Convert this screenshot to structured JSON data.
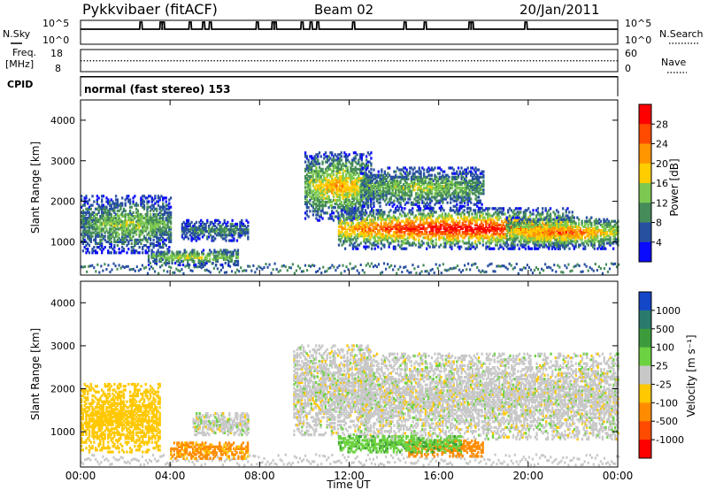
{
  "header": {
    "station": "Pykkvibaer (fitACF)",
    "beam": "Beam 02",
    "date": "20/Jan/2011"
  },
  "mode_line": "normal (fast stereo) 153",
  "axes": {
    "x_label": "Time UT",
    "x_ticks": [
      "00:00",
      "04:00",
      "08:00",
      "12:00",
      "16:00",
      "20:00",
      "00:00"
    ],
    "y_label": "Slant Range [km]",
    "y_ticks": [
      "1000",
      "2000",
      "3000",
      "4000"
    ]
  },
  "top_panel": {
    "left_label": "N.Sky",
    "right_label": "N.Search",
    "left_ticks": [
      "10^5",
      "10^0"
    ],
    "right_ticks": [
      "10^5",
      "10^0"
    ]
  },
  "freq_panel": {
    "left_label": "Freq.",
    "left_unit": "[MHz]",
    "right_label": "Nave",
    "left_ticks": [
      "18",
      "8"
    ],
    "right_ticks": [
      "60",
      "0"
    ]
  },
  "cpid_label": "CPID",
  "power_colorbar": {
    "label": "Power [dB]",
    "ticks": [
      "28",
      "24",
      "20",
      "16",
      "12",
      "8",
      "4"
    ],
    "colors": [
      "#ff0000",
      "#ff4b00",
      "#ff9600",
      "#ffcd00",
      "#7dc850",
      "#468c5a",
      "#2850a0",
      "#0a0aff"
    ]
  },
  "velocity_colorbar": {
    "label": "Velocity [m s⁻¹]",
    "ticks": [
      "1000",
      "500",
      "100",
      "25",
      "-25",
      "-100",
      "-500",
      "-1000"
    ],
    "colors": [
      "#1446c8",
      "#2a7b6e",
      "#3c9c3c",
      "#6cd241",
      "#c8c8c8",
      "#ffc800",
      "#ff8c00",
      "#ff4b00",
      "#ff0000"
    ]
  },
  "chart_data": [
    {
      "type": "line",
      "title": "N.Sky / N.Search",
      "x_range_hours": [
        0,
        24
      ],
      "baseline_level": "10^0 (flat near bottom of 10^5 scale)",
      "spike_hours": [
        2.7,
        3.6,
        3.7,
        4.9,
        5.5,
        5.8,
        7.9,
        8.6,
        8.7,
        9.9,
        10.3,
        10.6,
        12.2,
        14.5,
        15.4,
        17.4,
        17.5,
        19.9
      ]
    },
    {
      "type": "line",
      "title": "Freq. / Nave",
      "freq_mhz": 10.5,
      "nave_dotted": 15,
      "freq_range": [
        8,
        18
      ],
      "nave_range": [
        0,
        60
      ]
    },
    {
      "type": "heatmap",
      "title": "Power [dB]",
      "x": "Time UT (hours 0-24)",
      "y": "Slant Range [km] 180-4500",
      "scale": [
        0,
        30
      ],
      "echo_regions": [
        {
          "t_start": 0.0,
          "t_end": 4.0,
          "r_low": 700,
          "r_high": 2100,
          "peak_db": 14
        },
        {
          "t_start": 3.0,
          "t_end": 7.0,
          "r_low": 400,
          "r_high": 800,
          "peak_db": 16
        },
        {
          "t_start": 4.5,
          "t_end": 7.5,
          "r_low": 1000,
          "r_high": 1500,
          "peak_db": 10
        },
        {
          "t_start": 10.0,
          "t_end": 13.0,
          "r_low": 1500,
          "r_high": 3200,
          "peak_db": 20
        },
        {
          "t_start": 11.5,
          "t_end": 22.0,
          "r_low": 800,
          "r_high": 1800,
          "peak_db": 30
        },
        {
          "t_start": 12.5,
          "t_end": 18.0,
          "r_low": 1800,
          "r_high": 2800,
          "peak_db": 14
        },
        {
          "t_start": 19.0,
          "t_end": 24.0,
          "r_low": 800,
          "r_high": 1600,
          "peak_db": 24
        }
      ]
    },
    {
      "type": "heatmap",
      "title": "Velocity [m s⁻¹]",
      "x": "Time UT (hours 0-24)",
      "y": "Slant Range [km] 180-4500",
      "scale": [
        -1000,
        1000
      ],
      "echo_regions": [
        {
          "t_start": 0.0,
          "t_end": 3.5,
          "r_low": 500,
          "r_high": 2100,
          "vel": -60
        },
        {
          "t_start": 4.0,
          "t_end": 7.5,
          "r_low": 350,
          "r_high": 750,
          "vel": -120
        },
        {
          "t_start": 5.0,
          "t_end": 7.5,
          "r_low": 900,
          "r_high": 1400,
          "vel": 0
        },
        {
          "t_start": 9.5,
          "t_end": 13.0,
          "r_low": 900,
          "r_high": 3000,
          "vel": 0
        },
        {
          "t_start": 12.5,
          "t_end": 24.0,
          "r_low": 800,
          "r_high": 2800,
          "vel": 0
        },
        {
          "t_start": 14.5,
          "t_end": 18.0,
          "r_low": 400,
          "r_high": 800,
          "vel": -150
        },
        {
          "t_start": 11.5,
          "t_end": 17.0,
          "r_low": 500,
          "r_high": 900,
          "vel": 80
        }
      ]
    }
  ]
}
